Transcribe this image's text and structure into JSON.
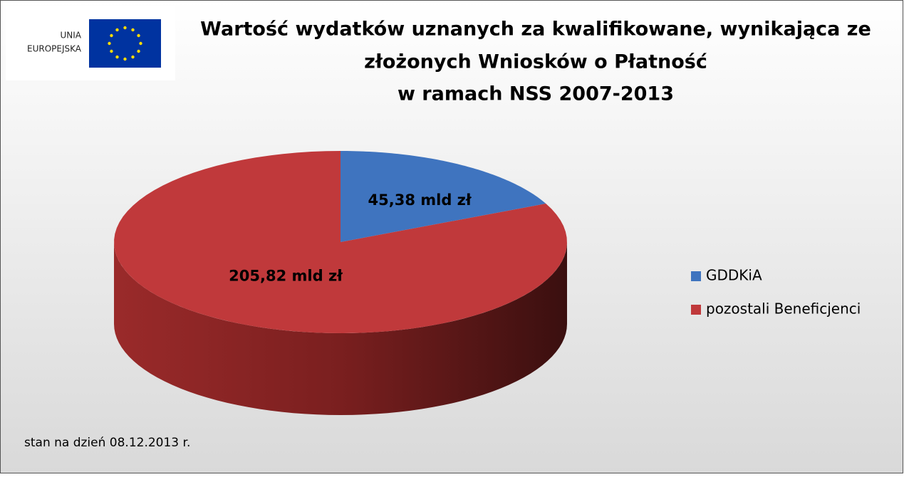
{
  "logo": {
    "lines": [
      "UNIA",
      "EUROPEJSKA"
    ]
  },
  "chart_data": {
    "type": "pie",
    "title": [
      "Wartość wydatków uznanych za kwalifikowane, wynikająca ze",
      "złożonych Wniosków o Płatność",
      "w ramach NSS 2007-2013"
    ],
    "categories": [
      "GDDKiA",
      "pozostali Beneficjenci"
    ],
    "values": [
      45.38,
      205.82
    ],
    "value_labels": [
      "45,38 mld zł",
      "205,82 mld zł"
    ],
    "colors": [
      "#3f74bf",
      "#c0393b"
    ],
    "legend": "right",
    "note": "stan na dzień 08.12.2013 r."
  }
}
